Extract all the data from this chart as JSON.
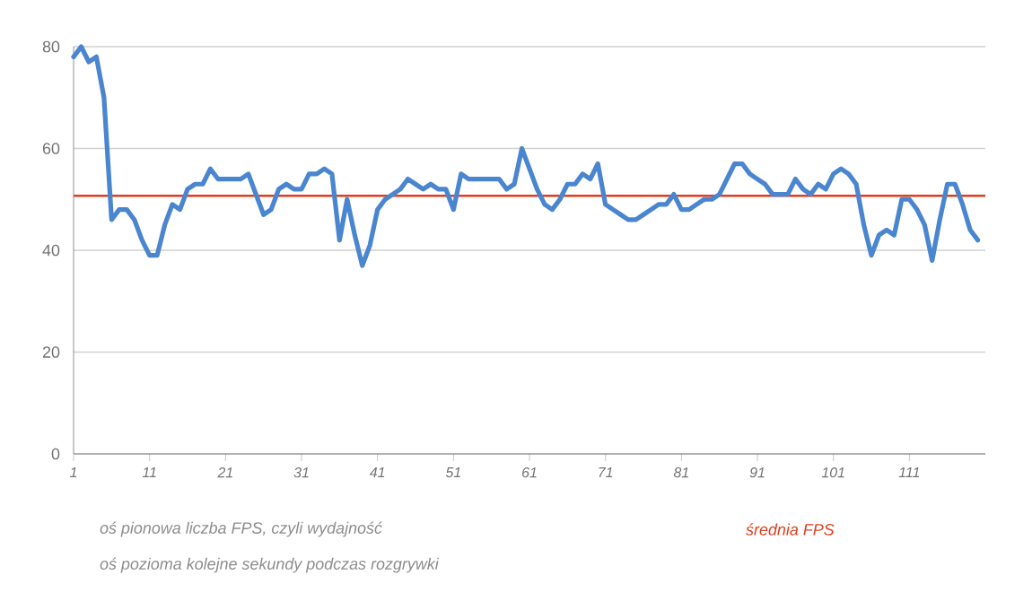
{
  "chart_data": {
    "type": "line",
    "x": [
      1,
      2,
      3,
      4,
      5,
      6,
      7,
      8,
      9,
      10,
      11,
      12,
      13,
      14,
      15,
      16,
      17,
      18,
      19,
      20,
      21,
      22,
      23,
      24,
      25,
      26,
      27,
      28,
      29,
      30,
      31,
      32,
      33,
      34,
      35,
      36,
      37,
      38,
      39,
      40,
      41,
      42,
      43,
      44,
      45,
      46,
      47,
      48,
      49,
      50,
      51,
      52,
      53,
      54,
      55,
      56,
      57,
      58,
      59,
      60,
      61,
      62,
      63,
      64,
      65,
      66,
      67,
      68,
      69,
      70,
      71,
      72,
      73,
      74,
      75,
      76,
      77,
      78,
      79,
      80,
      81,
      82,
      83,
      84,
      85,
      86,
      87,
      88,
      89,
      90,
      91,
      92,
      93,
      94,
      95,
      96,
      97,
      98,
      99,
      100,
      101,
      102,
      103,
      104,
      105,
      106,
      107,
      108,
      109,
      110,
      111,
      112,
      113,
      114,
      115,
      116,
      117,
      118,
      119,
      120
    ],
    "series": [
      {
        "color": "#4a86d0",
        "values": [
          78,
          80,
          77,
          78,
          70,
          46,
          48,
          48,
          46,
          42,
          39,
          39,
          45,
          49,
          48,
          52,
          53,
          53,
          56,
          54,
          54,
          54,
          54,
          55,
          51,
          47,
          48,
          52,
          53,
          52,
          52,
          55,
          55,
          56,
          55,
          42,
          50,
          43,
          37,
          41,
          48,
          50,
          51,
          52,
          54,
          53,
          52,
          53,
          52,
          52,
          48,
          55,
          54,
          54,
          54,
          54,
          54,
          52,
          53,
          60,
          56,
          52,
          49,
          48,
          50,
          53,
          53,
          55,
          54,
          57,
          49,
          48,
          47,
          46,
          46,
          47,
          48,
          49,
          49,
          51,
          48,
          48,
          49,
          50,
          50,
          51,
          54,
          57,
          57,
          55,
          54,
          53,
          51,
          51,
          51,
          54,
          52,
          51,
          53,
          52,
          55,
          56,
          55,
          53,
          45,
          39,
          43,
          44,
          43,
          50,
          50,
          48,
          45,
          38,
          46,
          53,
          53,
          49,
          44,
          42
        ]
      }
    ],
    "xlim": [
      1,
      121
    ],
    "ylim": [
      0,
      80
    ],
    "xticks": [
      1,
      11,
      21,
      31,
      41,
      51,
      61,
      71,
      81,
      91,
      101,
      111
    ],
    "yticks": [
      0,
      20,
      40,
      60,
      80
    ],
    "grid": "y",
    "marker": "none",
    "line_style": "solid",
    "ref_lines": [
      {
        "axis": "y",
        "value": 50.7,
        "label": "średnia FPS",
        "color": "#e03c1e"
      }
    ],
    "annotations": [
      "oś pionowa liczba FPS, czyli wydajność",
      "oś pozioma kolejne sekundy podczas rozgrywki"
    ]
  }
}
